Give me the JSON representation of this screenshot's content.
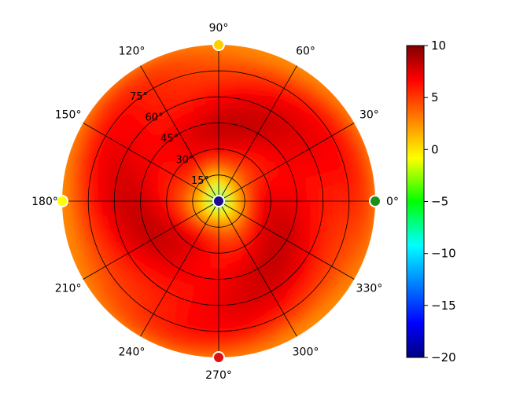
{
  "chart_data": {
    "type": "heatmap",
    "projection": "polar",
    "title": "",
    "theta_ticks": [
      "0°",
      "30°",
      "60°",
      "90°",
      "120°",
      "150°",
      "180°",
      "210°",
      "240°",
      "270°",
      "300°",
      "330°"
    ],
    "theta_tick_values": [
      0,
      30,
      60,
      90,
      120,
      150,
      180,
      210,
      240,
      270,
      300,
      330
    ],
    "r_ticks": [
      "15°",
      "30°",
      "45°",
      "60°",
      "75°"
    ],
    "r_tick_values": [
      15,
      30,
      45,
      60,
      75
    ],
    "r_range": [
      0,
      90
    ],
    "grid": true,
    "colormap": "jet",
    "colorbar": {
      "ticks": [
        "10",
        "5",
        "0",
        "−5",
        "−10",
        "−15",
        "−20"
      ],
      "tick_values": [
        10,
        5,
        0,
        -5,
        -10,
        -15,
        -20
      ],
      "range": [
        -20,
        10
      ],
      "placement": "right"
    },
    "markers": [
      {
        "theta": 0,
        "r": 90,
        "value": -4,
        "color": "#1a8f1a"
      },
      {
        "theta": 90,
        "r": 90,
        "value": 3,
        "color": "#ffd000"
      },
      {
        "theta": 180,
        "r": 90,
        "value": 1.5,
        "color": "#ffff00"
      },
      {
        "theta": 270,
        "r": 90,
        "value": 7,
        "color": "#e01010"
      },
      {
        "theta": 0,
        "r": 0,
        "value": -18,
        "color": "#1a0a90"
      }
    ],
    "value_profile": {
      "r": [
        0,
        10,
        20,
        30,
        45,
        60,
        75,
        85,
        90
      ],
      "value": [
        -6,
        0.5,
        4.5,
        6.5,
        7.2,
        6.5,
        5.3,
        3.8,
        2.5
      ]
    }
  }
}
